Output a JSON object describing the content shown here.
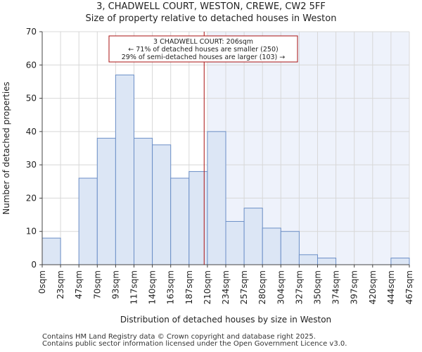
{
  "chart_data": {
    "type": "bar",
    "title": "3, CHADWELL COURT, WESTON, CREWE, CW2 5FF",
    "subtitle": "Size of property relative to detached houses in Weston",
    "xlabel": "Distribution of detached houses by size in Weston",
    "ylabel": "Number of detached properties",
    "ylim": [
      0,
      70
    ],
    "yticks": [
      0,
      10,
      20,
      30,
      40,
      50,
      60,
      70
    ],
    "xticks": [
      "0sqm",
      "23sqm",
      "47sqm",
      "70sqm",
      "93sqm",
      "117sqm",
      "140sqm",
      "163sqm",
      "187sqm",
      "210sqm",
      "234sqm",
      "257sqm",
      "280sqm",
      "304sqm",
      "327sqm",
      "350sqm",
      "374sqm",
      "397sqm",
      "420sqm",
      "444sqm",
      "467sqm"
    ],
    "values": [
      8,
      0,
      26,
      38,
      57,
      38,
      36,
      26,
      28,
      40,
      13,
      17,
      11,
      10,
      3,
      2,
      0,
      0,
      0,
      2
    ],
    "highlight_start_bin": 9,
    "marker": {
      "value_sqm": 206,
      "lines": [
        "3 CHADWELL COURT: 206sqm",
        "← 71% of detached houses are smaller (250)",
        "29% of semi-detached houses are larger (103) →"
      ]
    },
    "colors": {
      "bar_fill": "#dce6f5",
      "bar_stroke": "#6c8fc7",
      "highlight_bg": "#eef2fb",
      "marker": "#aa1111",
      "grid": "#d8d8d8"
    }
  },
  "footer": {
    "line1": "Contains HM Land Registry data © Crown copyright and database right 2025.",
    "line2": "Contains public sector information licensed under the Open Government Licence v3.0."
  }
}
